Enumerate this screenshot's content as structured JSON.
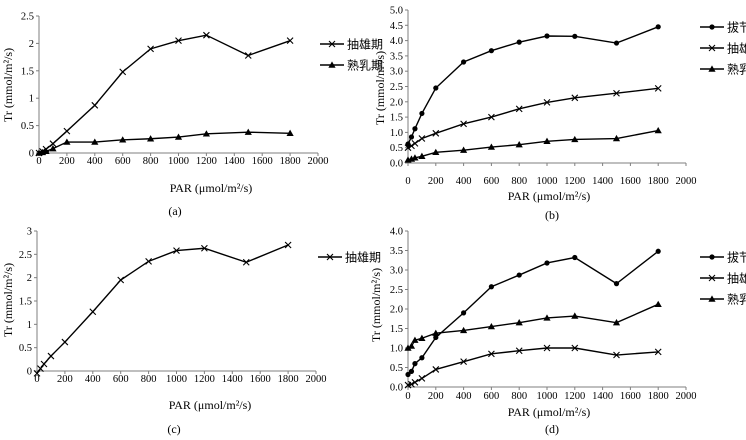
{
  "chart_data": [
    {
      "id": "a",
      "type": "line",
      "caption": "(a)",
      "xlabel": "PAR (μmol/m²/s)",
      "ylabel": "Tr (mmol/m²/s)",
      "xlim": [
        0,
        2000
      ],
      "ylim": [
        0,
        2.5
      ],
      "xticks": [
        0,
        200,
        400,
        600,
        800,
        1000,
        1200,
        1400,
        1600,
        1800,
        2000
      ],
      "xtick_labels": [
        "0",
        "200",
        "400",
        "600",
        "800",
        "1000",
        "1200",
        "1400",
        "1600",
        "1800",
        "2000"
      ],
      "yticks": [
        0,
        0.5,
        1,
        1.5,
        2,
        2.5
      ],
      "ytick_labels": [
        "0",
        "0.5",
        "1",
        "1.5",
        "2",
        "2.5"
      ],
      "series": [
        {
          "name": "抽雄期",
          "marker": "x",
          "x": [
            0,
            25,
            50,
            100,
            200,
            400,
            600,
            800,
            1000,
            1200,
            1500,
            1800
          ],
          "y": [
            0.0,
            0.03,
            0.07,
            0.17,
            0.4,
            0.87,
            1.48,
            1.9,
            2.05,
            2.15,
            1.78,
            2.05
          ]
        },
        {
          "name": "熟乳期",
          "marker": "triangle",
          "x": [
            0,
            25,
            50,
            100,
            200,
            400,
            600,
            800,
            1000,
            1200,
            1500,
            1800
          ],
          "y": [
            0.0,
            0.01,
            0.03,
            0.08,
            0.2,
            0.2,
            0.24,
            0.26,
            0.29,
            0.35,
            0.38,
            0.36
          ]
        }
      ]
    },
    {
      "id": "b",
      "type": "line",
      "caption": "(b)",
      "xlabel": "PAR (μmol/m²/s)",
      "ylabel": "Tr (mmol/m²/s)",
      "xlim": [
        0,
        2000
      ],
      "ylim": [
        0,
        5.0
      ],
      "xticks": [
        0,
        200,
        400,
        600,
        800,
        1000,
        1200,
        1400,
        1600,
        1800,
        2000
      ],
      "xtick_labels": [
        "0",
        "200",
        "400",
        "600",
        "800",
        "1000",
        "1200",
        "1400",
        "1600",
        "1800",
        "2000"
      ],
      "yticks": [
        0,
        0.5,
        1,
        1.5,
        2,
        2.5,
        3,
        3.5,
        4,
        4.5,
        5
      ],
      "ytick_labels": [
        "0.0",
        "0.5",
        "1.0",
        "1.5",
        "2.0",
        "2.5",
        "3.0",
        "3.5",
        "4.0",
        "4.5",
        "5.0"
      ],
      "series": [
        {
          "name": "拔节期",
          "marker": "circle",
          "x": [
            0,
            25,
            50,
            100,
            200,
            400,
            600,
            800,
            1000,
            1200,
            1500,
            1800
          ],
          "y": [
            0.62,
            0.85,
            1.12,
            1.62,
            2.45,
            3.3,
            3.67,
            3.95,
            4.15,
            4.14,
            3.92,
            4.45
          ]
        },
        {
          "name": "抽雄期",
          "marker": "x",
          "x": [
            0,
            25,
            50,
            100,
            200,
            400,
            600,
            800,
            1000,
            1200,
            1500,
            1800
          ],
          "y": [
            0.5,
            0.56,
            0.64,
            0.8,
            0.97,
            1.28,
            1.5,
            1.77,
            1.98,
            2.13,
            2.28,
            2.44
          ]
        },
        {
          "name": "熟乳期",
          "marker": "triangle",
          "x": [
            0,
            25,
            50,
            100,
            200,
            400,
            600,
            800,
            1000,
            1200,
            1500,
            1800
          ],
          "y": [
            0.1,
            0.13,
            0.17,
            0.22,
            0.35,
            0.42,
            0.52,
            0.6,
            0.71,
            0.77,
            0.8,
            1.06
          ]
        }
      ]
    },
    {
      "id": "c",
      "type": "line",
      "caption": "(c)",
      "xlabel": "PAR (μmol/m²/s)",
      "ylabel": "Tr (mmol/m²/s)",
      "xlim": [
        0,
        2000
      ],
      "ylim": [
        0,
        3
      ],
      "xticks": [
        0,
        200,
        400,
        600,
        800,
        1000,
        1200,
        1400,
        1600,
        1800,
        2000
      ],
      "xtick_labels": [
        "0",
        "200",
        "400",
        "600",
        "800",
        "1000",
        "1200",
        "1400",
        "1600",
        "1800",
        "2000"
      ],
      "yticks": [
        0,
        0.5,
        1,
        1.5,
        2,
        2.5,
        3
      ],
      "ytick_labels": [
        "0",
        "0.5",
        "1",
        "1.5",
        "2",
        "2.5",
        "3"
      ],
      "series": [
        {
          "name": "抽雄期",
          "marker": "x",
          "x": [
            0,
            25,
            50,
            100,
            200,
            400,
            600,
            800,
            1000,
            1200,
            1500,
            1800
          ],
          "y": [
            -0.05,
            0.05,
            0.15,
            0.32,
            0.62,
            1.27,
            1.95,
            2.35,
            2.58,
            2.63,
            2.33,
            2.7
          ]
        }
      ]
    },
    {
      "id": "d",
      "type": "line",
      "caption": "(d)",
      "xlabel": "PAR (μmol/m²/s)",
      "ylabel": "Tr (mmol/m²/s)",
      "xlim": [
        0,
        2000
      ],
      "ylim": [
        0,
        4.0
      ],
      "xticks": [
        0,
        200,
        400,
        600,
        800,
        1000,
        1200,
        1400,
        1600,
        1800,
        2000
      ],
      "xtick_labels": [
        "0",
        "200",
        "400",
        "600",
        "800",
        "1000",
        "1200",
        "1400",
        "1600",
        "1800",
        "2000"
      ],
      "yticks": [
        0,
        0.5,
        1,
        1.5,
        2,
        2.5,
        3,
        3.5,
        4
      ],
      "ytick_labels": [
        "0.0",
        "0.5",
        "1.0",
        "1.5",
        "2.0",
        "2.5",
        "3.0",
        "3.5",
        "4.0"
      ],
      "series": [
        {
          "name": "拔节期",
          "marker": "circle",
          "x": [
            0,
            25,
            50,
            100,
            200,
            400,
            600,
            800,
            1000,
            1200,
            1500,
            1800
          ],
          "y": [
            0.32,
            0.4,
            0.6,
            0.75,
            1.27,
            1.9,
            2.57,
            2.87,
            3.18,
            3.32,
            2.65,
            3.48
          ]
        },
        {
          "name": "抽雄期",
          "marker": "x",
          "x": [
            0,
            25,
            50,
            100,
            200,
            400,
            600,
            800,
            1000,
            1200,
            1500,
            1800
          ],
          "y": [
            0.05,
            0.07,
            0.12,
            0.22,
            0.45,
            0.65,
            0.85,
            0.93,
            1.0,
            1.0,
            0.82,
            0.9
          ]
        },
        {
          "name": "熟乳期",
          "marker": "triangle",
          "x": [
            0,
            25,
            50,
            100,
            200,
            400,
            600,
            800,
            1000,
            1200,
            1500,
            1800
          ],
          "y": [
            1.0,
            1.05,
            1.2,
            1.25,
            1.38,
            1.45,
            1.55,
            1.65,
            1.77,
            1.82,
            1.65,
            2.12
          ]
        }
      ]
    }
  ]
}
